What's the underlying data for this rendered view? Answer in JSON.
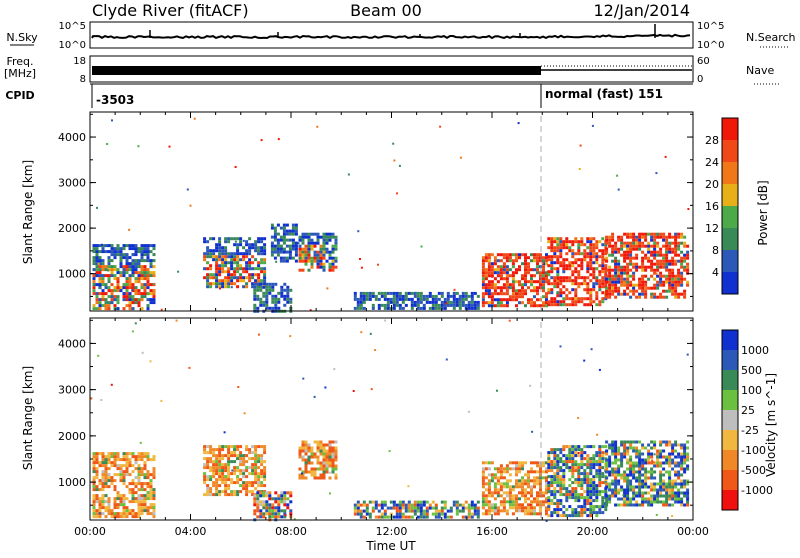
{
  "header": {
    "station": "Clyde River (fitACF)",
    "beam": "Beam 00",
    "date": "12/Jan/2014"
  },
  "top_panels": {
    "nsky_label": "N.Sky",
    "nsky_ticks": [
      "10^5",
      "10^0"
    ],
    "nsearch_label": "N.Search",
    "nsearch_ticks": [
      "10^5",
      "10^0"
    ],
    "freq_label": "Freq.",
    "freq_unit": "[MHz]",
    "freq_ticks": [
      "18",
      "8"
    ],
    "nave_label": "Nave",
    "nave_ticks": [
      "60",
      "0"
    ],
    "cpid_label": "CPID",
    "cpid_left": "-3503",
    "cpid_right": "normal (fast) 151"
  },
  "colors": {
    "power": [
      "#1030d0",
      "#2c58b8",
      "#3a8a58",
      "#4caa48",
      "#e8b018",
      "#f07818",
      "#f04818",
      "#f01808"
    ],
    "velocity": [
      "#f01010",
      "#f05818",
      "#f08828",
      "#f0b840",
      "#bebebe",
      "#6cc040",
      "#3a8a58",
      "#2c58b8",
      "#1030d0"
    ]
  },
  "chart_data": [
    {
      "type": "heatmap",
      "title": "Power",
      "xlabel": "",
      "ylabel": "Slant Range [km]",
      "x_ticks": [
        "00:00",
        "04:00",
        "08:00",
        "12:00",
        "16:00",
        "20:00",
        "00:00"
      ],
      "xlim_hours": [
        0,
        24
      ],
      "y_ticks": [
        "1000",
        "2000",
        "3000",
        "4000"
      ],
      "ylim_km": [
        180,
        4550
      ],
      "colorbar_label": "Power [dB]",
      "colorbar_ticks": [
        "4",
        "8",
        "12",
        "16",
        "20",
        "24",
        "28"
      ],
      "colorbar_range": [
        0,
        32
      ],
      "grid": false,
      "echo_regions": [
        {
          "t0": 0.1,
          "t1": 2.6,
          "r0": 250,
          "r1": 1650,
          "level": "mixed"
        },
        {
          "t0": 4.5,
          "t1": 7.0,
          "r0": 700,
          "r1": 1800,
          "level": "mixed"
        },
        {
          "t0": 6.5,
          "t1": 8.0,
          "r0": 200,
          "r1": 800,
          "level": "low"
        },
        {
          "t0": 7.2,
          "t1": 8.2,
          "r0": 1300,
          "r1": 2100,
          "level": "low"
        },
        {
          "t0": 8.3,
          "t1": 9.8,
          "r0": 1100,
          "r1": 1900,
          "level": "mixed"
        },
        {
          "t0": 10.5,
          "t1": 15.5,
          "r0": 250,
          "r1": 600,
          "level": "low"
        },
        {
          "t0": 15.6,
          "t1": 18.2,
          "r0": 300,
          "r1": 1450,
          "level": "high"
        },
        {
          "t0": 18.2,
          "t1": 20.5,
          "r0": 300,
          "r1": 1800,
          "level": "high"
        },
        {
          "t0": 20.5,
          "t1": 23.8,
          "r0": 500,
          "r1": 1900,
          "level": "high"
        }
      ]
    },
    {
      "type": "heatmap",
      "title": "Velocity",
      "xlabel": "Time UT",
      "ylabel": "Slant Range [km]",
      "x_ticks": [
        "00:00",
        "04:00",
        "08:00",
        "12:00",
        "16:00",
        "20:00",
        "00:00"
      ],
      "xlim_hours": [
        0,
        24
      ],
      "y_ticks": [
        "1000",
        "2000",
        "3000",
        "4000"
      ],
      "ylim_km": [
        180,
        4550
      ],
      "colorbar_label": "Velocity [m s^-1]",
      "colorbar_ticks": [
        "1000",
        "500",
        "100",
        "25",
        "-25",
        "-100",
        "-500",
        "-1000"
      ],
      "grid": false,
      "echo_regions": [
        {
          "t0": 0.1,
          "t1": 2.6,
          "r0": 250,
          "r1": 1650,
          "level": "neg"
        },
        {
          "t0": 4.5,
          "t1": 7.0,
          "r0": 700,
          "r1": 1800,
          "level": "neg"
        },
        {
          "t0": 6.5,
          "t1": 8.0,
          "r0": 200,
          "r1": 800,
          "level": "mixed"
        },
        {
          "t0": 8.3,
          "t1": 9.8,
          "r0": 1100,
          "r1": 1900,
          "level": "neg"
        },
        {
          "t0": 10.5,
          "t1": 15.5,
          "r0": 250,
          "r1": 600,
          "level": "pos"
        },
        {
          "t0": 15.6,
          "t1": 18.2,
          "r0": 300,
          "r1": 1450,
          "level": "neg"
        },
        {
          "t0": 18.2,
          "t1": 20.5,
          "r0": 300,
          "r1": 1800,
          "level": "pos"
        },
        {
          "t0": 20.5,
          "t1": 23.8,
          "r0": 500,
          "r1": 1900,
          "level": "pos"
        }
      ]
    }
  ]
}
